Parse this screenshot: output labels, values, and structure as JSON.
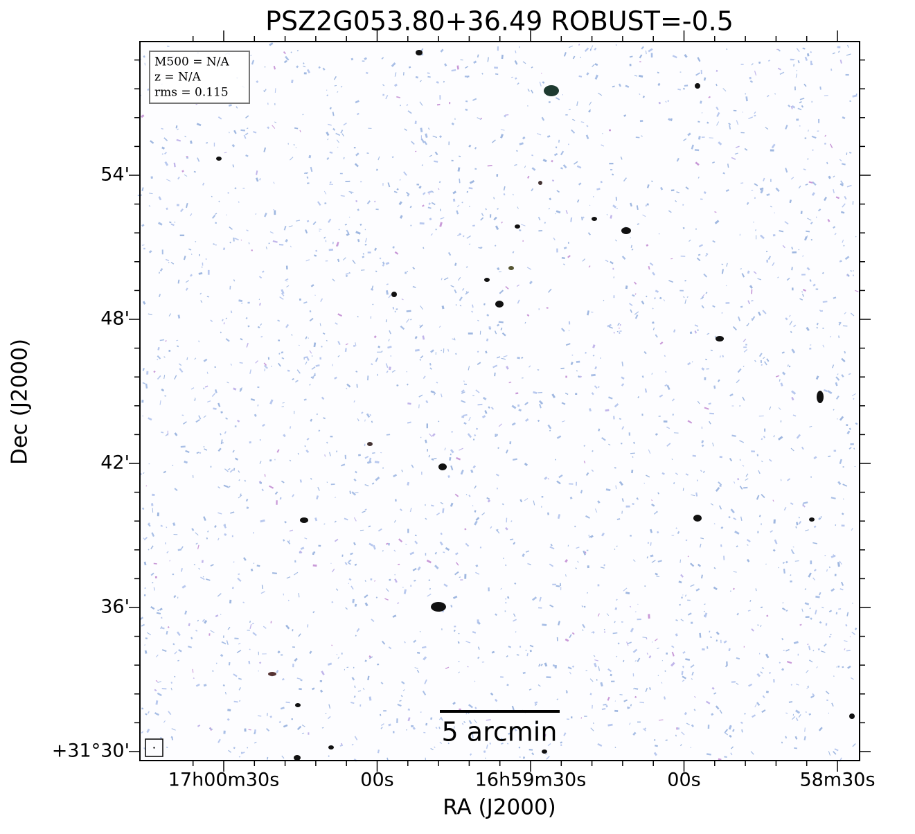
{
  "chart_data": {
    "type": "image",
    "title": "PSZ2G053.80+36.49 ROBUST=-0.5",
    "x_label": "RA (J2000)",
    "y_label": "Dec (J2000)",
    "xtick_labels": [
      "17h00m30s",
      "00s",
      "16h59m30s",
      "00s",
      "58m30s"
    ],
    "ytick_labels": [
      "54'",
      "48'",
      "42'",
      "36'",
      "+31°30'"
    ],
    "annotations": [
      "M500 = N/A",
      "z = N/A",
      "rms = 0.115"
    ],
    "scale_bar_label": "5 arcmin"
  }
}
